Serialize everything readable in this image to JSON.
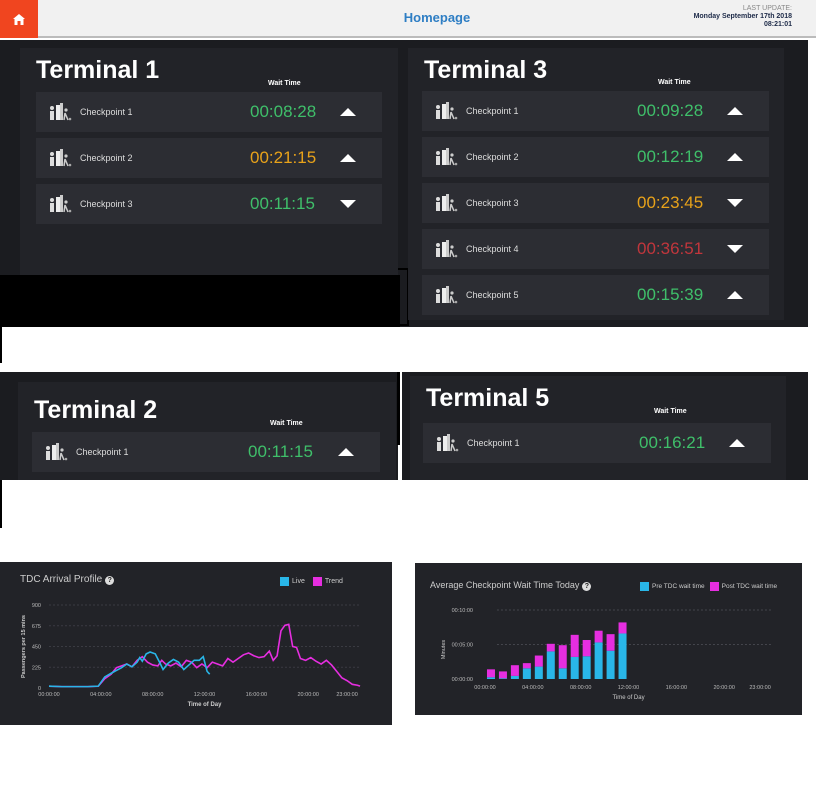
{
  "header": {
    "title": "Homepage",
    "last_update_label": "LAST UPDATE:",
    "last_update_date": "Monday September 17th 2018",
    "last_update_time": "08:21:01",
    "home_icon": "home-icon"
  },
  "colors": {
    "green": "#3fbf6a",
    "orange": "#e8a21a",
    "red": "#c0363c",
    "live": "#29b6e8",
    "trend": "#e62ee0",
    "pre": "#29b6e8",
    "post": "#e62ee0"
  },
  "wait_time_label": "Wait Time",
  "terminals": [
    {
      "name": "Terminal 1",
      "checkpoints": [
        {
          "name": "Checkpoint 1",
          "time": "00:08:28",
          "status": "green",
          "trend": "up"
        },
        {
          "name": "Checkpoint 2",
          "time": "00:21:15",
          "status": "orange",
          "trend": "up"
        },
        {
          "name": "Checkpoint 3",
          "time": "00:11:15",
          "status": "green",
          "trend": "down"
        }
      ]
    },
    {
      "name": "Terminal 3",
      "checkpoints": [
        {
          "name": "Checkpoint 1",
          "time": "00:09:28",
          "status": "green",
          "trend": "up"
        },
        {
          "name": "Checkpoint 2",
          "time": "00:12:19",
          "status": "green",
          "trend": "up"
        },
        {
          "name": "Checkpoint 3",
          "time": "00:23:45",
          "status": "orange",
          "trend": "down"
        },
        {
          "name": "Checkpoint 4",
          "time": "00:36:51",
          "status": "red",
          "trend": "down"
        },
        {
          "name": "Checkpoint 5",
          "time": "00:15:39",
          "status": "green",
          "trend": "up"
        }
      ]
    },
    {
      "name": "Terminal 2",
      "checkpoints": [
        {
          "name": "Checkpoint 1",
          "time": "00:11:15",
          "status": "green",
          "trend": "up"
        }
      ]
    },
    {
      "name": "Terminal 5",
      "checkpoints": [
        {
          "name": "Checkpoint 1",
          "time": "00:16:21",
          "status": "green",
          "trend": "up"
        }
      ]
    }
  ],
  "chart_data": [
    {
      "type": "line",
      "title": "TDC Arrival Profile",
      "xlabel": "Time of Day",
      "ylabel": "Passengers per 15 mins",
      "xticks": [
        "00:00:00",
        "04:00:00",
        "08:00:00",
        "12:00:00",
        "16:00:00",
        "20:00:00",
        "23:00:00"
      ],
      "xtick_hours": [
        0,
        4,
        8,
        12,
        16,
        20,
        23
      ],
      "yticks": [
        0,
        225,
        450,
        675,
        900
      ],
      "ylim": [
        0,
        900
      ],
      "xlim_hours": [
        0,
        24
      ],
      "grid": true,
      "legend": "top-right",
      "series": [
        {
          "name": "Live",
          "x": [
            0,
            1,
            2,
            3,
            3.8,
            4.3,
            4.8,
            5.2,
            5.6,
            6,
            6.4,
            6.8,
            7.0,
            7.2,
            7.5,
            7.8,
            8.2,
            8.6,
            8.8,
            9.2,
            9.6,
            10,
            10.4,
            10.8,
            11.2,
            11.6,
            11.9,
            12.2,
            12.4
          ],
          "y": [
            20,
            15,
            15,
            15,
            20,
            120,
            160,
            190,
            220,
            260,
            230,
            280,
            330,
            290,
            370,
            390,
            370,
            260,
            200,
            270,
            310,
            280,
            200,
            250,
            300,
            300,
            340,
            180,
            150
          ]
        },
        {
          "name": "Trend",
          "x": [
            0,
            1,
            2,
            3,
            3.8,
            4.3,
            4.8,
            5.2,
            5.6,
            6,
            6.4,
            6.8,
            7.2,
            7.6,
            8,
            8.4,
            8.7,
            9,
            9.4,
            9.8,
            10.2,
            10.6,
            11,
            11.4,
            11.8,
            12.2,
            12.6,
            13,
            13.4,
            13.8,
            14.2,
            14.6,
            15,
            15.4,
            15.8,
            16.2,
            16.6,
            17,
            17.3,
            17.6,
            17.9,
            18.2,
            18.5,
            18.8,
            19.1,
            19.4,
            19.8,
            20.2,
            20.6,
            21,
            21.4,
            21.8,
            22.2,
            22.6,
            23,
            23.4,
            23.8,
            24
          ],
          "y": [
            20,
            15,
            15,
            15,
            20,
            100,
            150,
            220,
            240,
            260,
            230,
            300,
            340,
            280,
            250,
            240,
            300,
            260,
            240,
            270,
            230,
            300,
            280,
            220,
            260,
            220,
            280,
            260,
            240,
            320,
            280,
            320,
            360,
            380,
            350,
            330,
            340,
            400,
            300,
            350,
            620,
            680,
            690,
            450,
            440,
            320,
            300,
            330,
            290,
            260,
            300,
            250,
            180,
            110,
            80,
            40,
            30,
            20
          ]
        }
      ]
    },
    {
      "type": "bar",
      "stacked": true,
      "title": "Average Checkpoint Wait Time Today",
      "xlabel": "Time of Day",
      "ylabel": "Minutes",
      "xticks": [
        "00:00:00",
        "04:00:00",
        "08:00:00",
        "12:00:00",
        "16:00:00",
        "20:00:00",
        "23:00:00"
      ],
      "xtick_hours": [
        0,
        4,
        8,
        12,
        16,
        20,
        23
      ],
      "yticks": [
        "00:00:00",
        "00:05:00",
        "00:10:00"
      ],
      "ylim_minutes": [
        0,
        10
      ],
      "grid": true,
      "legend": "top-right",
      "hours": [
        0,
        1,
        2,
        3,
        4,
        5,
        6,
        7,
        8,
        9,
        10,
        11
      ],
      "series": [
        {
          "name": "Pre TDC wait time",
          "values": [
            0.25,
            0.1,
            0.45,
            1.55,
            1.8,
            4.0,
            1.55,
            3.2,
            3.3,
            5.3,
            4.1,
            6.6
          ]
        },
        {
          "name": "Post TDC wait time",
          "values": [
            1.15,
            1.0,
            1.55,
            0.75,
            1.6,
            1.1,
            3.35,
            3.2,
            2.35,
            1.7,
            2.4,
            1.6
          ]
        }
      ]
    }
  ]
}
